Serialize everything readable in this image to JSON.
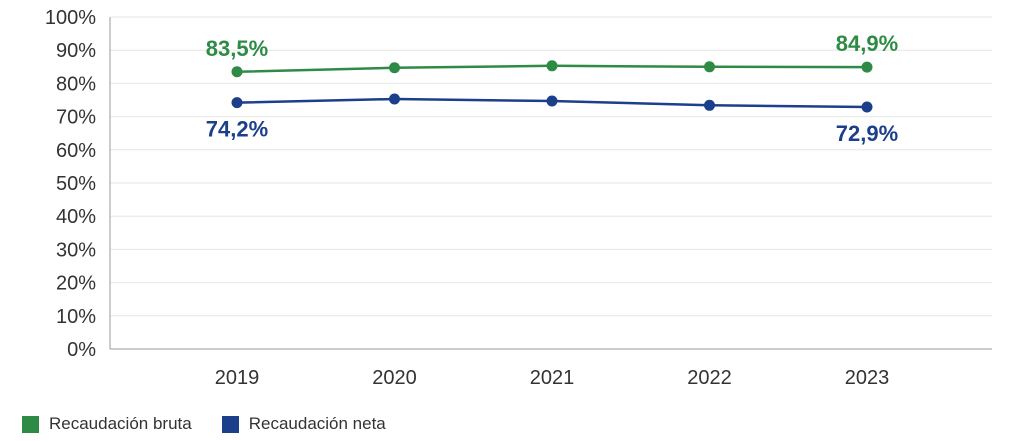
{
  "chart_data": {
    "type": "line",
    "x": [
      "2019",
      "2020",
      "2021",
      "2022",
      "2023"
    ],
    "series": [
      {
        "name": "Recaudación bruta",
        "color": "#2e8b45",
        "values": [
          83.5,
          84.7,
          85.3,
          85.0,
          84.9
        ],
        "data_labels": [
          {
            "index": 0,
            "text": "83,5%"
          },
          {
            "index": 4,
            "text": "84,9%"
          }
        ]
      },
      {
        "name": "Recaudación neta",
        "color": "#1b3f8a",
        "values": [
          74.2,
          75.3,
          74.7,
          73.4,
          72.9
        ],
        "data_labels": [
          {
            "index": 0,
            "text": "74,2%"
          },
          {
            "index": 4,
            "text": "72,9%"
          }
        ]
      }
    ],
    "y_ticks": [
      "0%",
      "10%",
      "20%",
      "30%",
      "40%",
      "50%",
      "60%",
      "70%",
      "80%",
      "90%",
      "100%"
    ],
    "ylim": [
      0,
      100
    ],
    "grid": true,
    "legend_position": "bottom-left",
    "title": "",
    "xlabel": "",
    "ylabel": ""
  }
}
